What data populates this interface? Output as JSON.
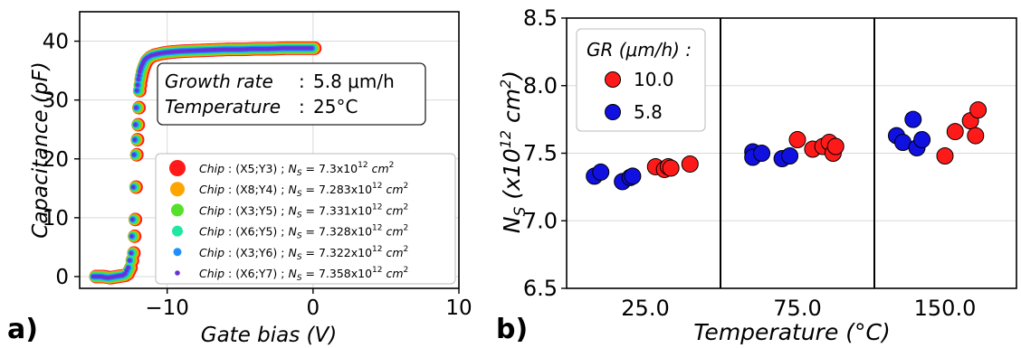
{
  "panel_labels": {
    "a": "a)",
    "b": "b)"
  },
  "panel_a": {
    "annotation": {
      "line1_label": "Growth rate",
      "line1_value": "5.8 μm/h",
      "line2_label": "Temperature",
      "line2_value": "25°C"
    },
    "legend": [
      {
        "chip": "(X5;Y3)",
        "ns": "7.3x10",
        "exp": "12",
        "unit": "cm",
        "unit_exp": "2",
        "color": "#ff1a1a"
      },
      {
        "chip": "(X8;Y4)",
        "ns": "7.283x10",
        "exp": "12",
        "unit": "cm",
        "unit_exp": "2",
        "color": "#ffa500"
      },
      {
        "chip": "(X3;Y5)",
        "ns": "7.331x10",
        "exp": "12",
        "unit": "cm",
        "unit_exp": "2",
        "color": "#55e029"
      },
      {
        "chip": "(X6;Y5)",
        "ns": "7.328x10",
        "exp": "12",
        "unit": "cm",
        "unit_exp": "2",
        "color": "#1de9a0"
      },
      {
        "chip": "(X3;Y6)",
        "ns": "7.322x10",
        "exp": "12",
        "unit": "cm",
        "unit_exp": "2",
        "color": "#1e90ff"
      },
      {
        "chip": "(X6;Y7)",
        "ns": "7.358x10",
        "exp": "12",
        "unit": "cm",
        "unit_exp": "2",
        "color": "#6a2fd6"
      }
    ],
    "legend_prefix": "Chip",
    "legend_sep": ":",
    "legend_ns_symbol": "N",
    "legend_ns_sub": "S"
  },
  "chart_data": [
    {
      "type": "scatter",
      "panel": "a",
      "title": "",
      "xlabel": "Gate bias (V)",
      "ylabel": "Capacitance (pF)",
      "xlim": [
        -16,
        10
      ],
      "ylim": [
        -2,
        45
      ],
      "xticks": [
        -10,
        0,
        10
      ],
      "xtick_labels": [
        "−10",
        "0",
        "10"
      ],
      "yticks": [
        0,
        10,
        20,
        30,
        40
      ],
      "yticks_labels": [
        "0",
        "10",
        "20",
        "30",
        "40"
      ],
      "grid": true,
      "legend_position": "lower-right",
      "series": [
        {
          "name": "Chip : (X5;Y3) ; NS = 7.3x10^12 cm^2",
          "color": "#ff1a1a",
          "marker_size": 7.5,
          "x_shift": 0.12
        },
        {
          "name": "Chip : (X8;Y4) ; NS = 7.283x10^12 cm^2",
          "color": "#ffa500",
          "marker_size": 6.5,
          "x_shift": 0.06
        },
        {
          "name": "Chip : (X3;Y5) ; NS = 7.331x10^12 cm^2",
          "color": "#55e029",
          "marker_size": 5.5,
          "x_shift": 0.02
        },
        {
          "name": "Chip : (X6;Y5) ; NS = 7.328x10^12 cm^2",
          "color": "#1de9a0",
          "marker_size": 4.5,
          "x_shift": -0.02
        },
        {
          "name": "Chip : (X3;Y6) ; NS = 7.322x10^12 cm^2",
          "color": "#1e90ff",
          "marker_size": 3.5,
          "x_shift": -0.05
        },
        {
          "name": "Chip : (X6;Y7) ; NS = 7.358x10^12 cm^2",
          "color": "#6a2fd6",
          "marker_size": 2.2,
          "x_shift": -0.08
        }
      ],
      "curve": {
        "x": [
          -15,
          -14.5,
          -14,
          -13.5,
          -13,
          -12.8,
          -12.6,
          -12.4,
          -12.3,
          -12.2,
          -12.1,
          -12.0,
          -11.9,
          -11.8,
          -11.7,
          -11.6,
          -11.5,
          -11.3,
          -11,
          -10.5,
          -10,
          -9,
          -8,
          -7,
          -6,
          -5,
          -4,
          -3,
          -2,
          -1,
          0
        ],
        "y": [
          0,
          0,
          -0.2,
          0,
          0.2,
          0.5,
          1.5,
          4,
          9.7,
          20.7,
          25.8,
          31.6,
          33.5,
          34.8,
          35.6,
          36.2,
          36.7,
          37.2,
          37.6,
          37.9,
          38.1,
          38.3,
          38.4,
          38.5,
          38.6,
          38.6,
          38.7,
          38.7,
          38.8,
          38.8,
          38.8
        ]
      }
    },
    {
      "type": "scatter",
      "panel": "b",
      "title": "",
      "xlabel": "Temperature (°C)",
      "ylabel": "NS (x10^12 cm^2)",
      "categories": [
        "25.0",
        "75.0",
        "150.0"
      ],
      "ylim": [
        6.5,
        8.5
      ],
      "yticks": [
        6.5,
        7.0,
        7.5,
        8.0,
        8.5
      ],
      "ytick_labels": [
        "6.5",
        "7.0",
        "7.5",
        "8.0",
        "8.5"
      ],
      "grid": true,
      "legend_title": "GR (μm/h) :",
      "legend_position": "top-left",
      "series": [
        {
          "name": "10.0",
          "color": "#ff1a1a",
          "points": [
            {
              "category": 0,
              "offset": 0.08,
              "y": 7.4
            },
            {
              "category": 0,
              "offset": 0.15,
              "y": 7.38
            },
            {
              "category": 0,
              "offset": 0.18,
              "y": 7.4
            },
            {
              "category": 0,
              "offset": 0.2,
              "y": 7.39
            },
            {
              "category": 0,
              "offset": 0.35,
              "y": 7.42
            },
            {
              "category": 1,
              "offset": 0.0,
              "y": 7.6
            },
            {
              "category": 1,
              "offset": 0.12,
              "y": 7.53
            },
            {
              "category": 1,
              "offset": 0.2,
              "y": 7.55
            },
            {
              "category": 1,
              "offset": 0.25,
              "y": 7.58
            },
            {
              "category": 1,
              "offset": 0.28,
              "y": 7.5
            },
            {
              "category": 1,
              "offset": 0.3,
              "y": 7.55
            },
            {
              "category": 2,
              "offset": 0.0,
              "y": 7.48
            },
            {
              "category": 2,
              "offset": 0.08,
              "y": 7.66
            },
            {
              "category": 2,
              "offset": 0.2,
              "y": 7.74
            },
            {
              "category": 2,
              "offset": 0.24,
              "y": 7.63
            },
            {
              "category": 2,
              "offset": 0.26,
              "y": 7.82
            }
          ]
        },
        {
          "name": "5.8",
          "color": "#1010e0",
          "points": [
            {
              "category": 0,
              "offset": -0.4,
              "y": 7.33
            },
            {
              "category": 0,
              "offset": -0.35,
              "y": 7.36
            },
            {
              "category": 0,
              "offset": -0.18,
              "y": 7.29
            },
            {
              "category": 0,
              "offset": -0.12,
              "y": 7.32
            },
            {
              "category": 0,
              "offset": -0.1,
              "y": 7.33
            },
            {
              "category": 1,
              "offset": -0.35,
              "y": 7.51
            },
            {
              "category": 1,
              "offset": -0.35,
              "y": 7.47
            },
            {
              "category": 1,
              "offset": -0.28,
              "y": 7.5
            },
            {
              "category": 1,
              "offset": -0.12,
              "y": 7.46
            },
            {
              "category": 1,
              "offset": -0.06,
              "y": 7.48
            },
            {
              "category": 2,
              "offset": -0.38,
              "y": 7.63
            },
            {
              "category": 2,
              "offset": -0.33,
              "y": 7.58
            },
            {
              "category": 2,
              "offset": -0.25,
              "y": 7.75
            },
            {
              "category": 2,
              "offset": -0.22,
              "y": 7.54
            },
            {
              "category": 2,
              "offset": -0.18,
              "y": 7.6
            }
          ]
        }
      ]
    }
  ]
}
